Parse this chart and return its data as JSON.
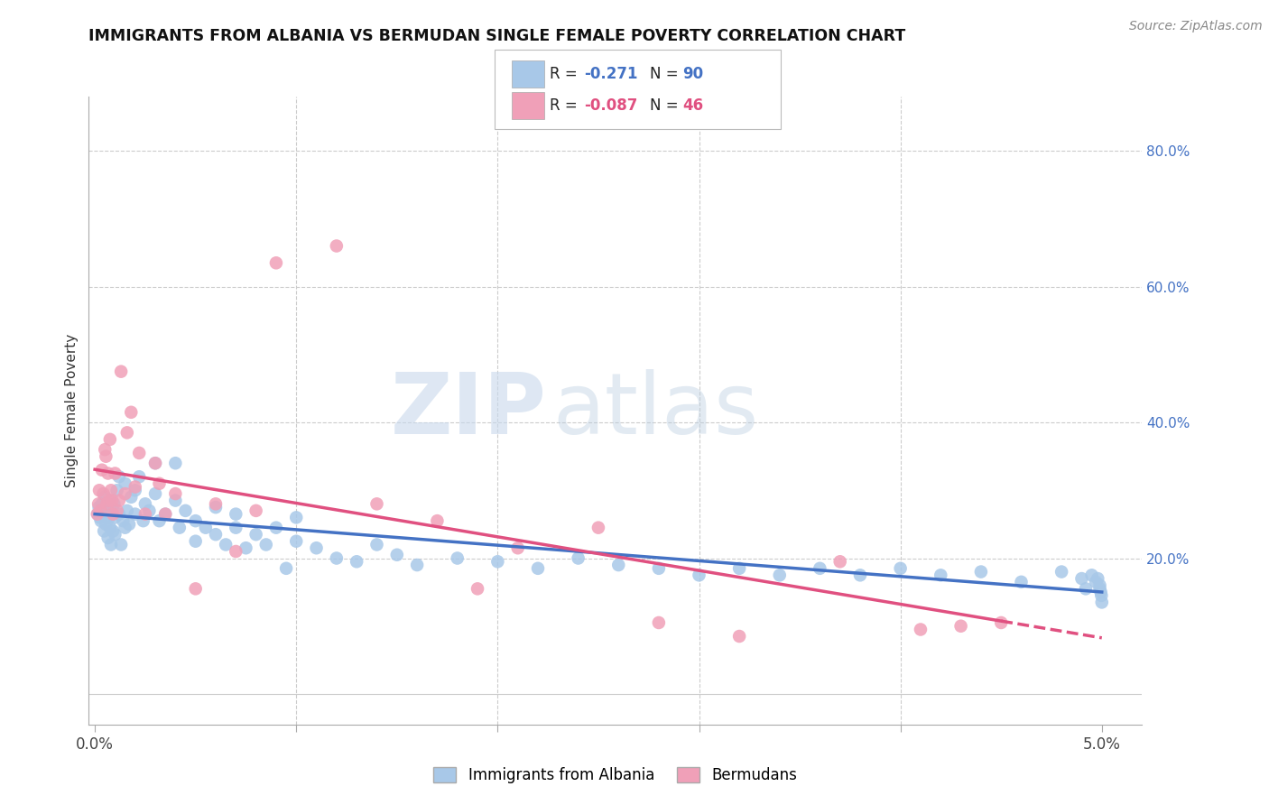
{
  "title": "IMMIGRANTS FROM ALBANIA VS BERMUDAN SINGLE FEMALE POVERTY CORRELATION CHART",
  "source": "Source: ZipAtlas.com",
  "ylabel": "Single Female Poverty",
  "albania_color": "#a8c8e8",
  "bermuda_color": "#f0a0b8",
  "albania_line_color": "#4472c4",
  "bermuda_line_color": "#e05080",
  "R_albania": -0.271,
  "N_albania": 90,
  "R_bermuda": -0.087,
  "N_bermuda": 46,
  "legend_albania": "Immigrants from Albania",
  "legend_bermuda": "Bermudans",
  "watermark_zip": "ZIP",
  "watermark_atlas": "atlas",
  "background_color": "#ffffff",
  "albania_scatter_x": [
    0.00015,
    0.0002,
    0.00025,
    0.0003,
    0.00035,
    0.0004,
    0.00045,
    0.0005,
    0.00055,
    0.0006,
    0.00065,
    0.0007,
    0.00075,
    0.0008,
    0.00085,
    0.0009,
    0.00095,
    0.001,
    0.001,
    0.0011,
    0.0012,
    0.0012,
    0.0013,
    0.0014,
    0.0015,
    0.0015,
    0.0016,
    0.0017,
    0.0018,
    0.002,
    0.002,
    0.0022,
    0.0024,
    0.0025,
    0.0027,
    0.003,
    0.003,
    0.0032,
    0.0035,
    0.004,
    0.004,
    0.0042,
    0.0045,
    0.005,
    0.005,
    0.0055,
    0.006,
    0.006,
    0.0065,
    0.007,
    0.007,
    0.0075,
    0.008,
    0.0085,
    0.009,
    0.0095,
    0.01,
    0.01,
    0.011,
    0.012,
    0.013,
    0.014,
    0.015,
    0.016,
    0.018,
    0.02,
    0.022,
    0.024,
    0.026,
    0.028,
    0.03,
    0.032,
    0.034,
    0.036,
    0.038,
    0.04,
    0.042,
    0.044,
    0.046,
    0.048,
    0.049,
    0.0492,
    0.0495,
    0.0497,
    0.0498,
    0.0499,
    0.0499,
    0.04995,
    0.04998,
    0.05
  ],
  "albania_scatter_y": [
    0.265,
    0.275,
    0.26,
    0.255,
    0.28,
    0.27,
    0.24,
    0.29,
    0.25,
    0.27,
    0.23,
    0.26,
    0.245,
    0.22,
    0.275,
    0.24,
    0.28,
    0.26,
    0.235,
    0.3,
    0.265,
    0.32,
    0.22,
    0.255,
    0.31,
    0.245,
    0.27,
    0.25,
    0.29,
    0.3,
    0.265,
    0.32,
    0.255,
    0.28,
    0.27,
    0.34,
    0.295,
    0.255,
    0.265,
    0.34,
    0.285,
    0.245,
    0.27,
    0.255,
    0.225,
    0.245,
    0.275,
    0.235,
    0.22,
    0.265,
    0.245,
    0.215,
    0.235,
    0.22,
    0.245,
    0.185,
    0.26,
    0.225,
    0.215,
    0.2,
    0.195,
    0.22,
    0.205,
    0.19,
    0.2,
    0.195,
    0.185,
    0.2,
    0.19,
    0.185,
    0.175,
    0.185,
    0.175,
    0.185,
    0.175,
    0.185,
    0.175,
    0.18,
    0.165,
    0.18,
    0.17,
    0.155,
    0.175,
    0.165,
    0.17,
    0.155,
    0.16,
    0.15,
    0.145,
    0.135
  ],
  "bermuda_scatter_x": [
    0.00012,
    0.00018,
    0.00022,
    0.00028,
    0.00035,
    0.00042,
    0.0005,
    0.00055,
    0.0006,
    0.00065,
    0.0007,
    0.00075,
    0.0008,
    0.00085,
    0.0009,
    0.001,
    0.0011,
    0.0012,
    0.0013,
    0.0015,
    0.0016,
    0.0018,
    0.002,
    0.0022,
    0.0025,
    0.003,
    0.0032,
    0.0035,
    0.004,
    0.005,
    0.006,
    0.007,
    0.008,
    0.009,
    0.012,
    0.014,
    0.017,
    0.019,
    0.021,
    0.025,
    0.028,
    0.032,
    0.037,
    0.041,
    0.043,
    0.045
  ],
  "bermuda_scatter_y": [
    0.265,
    0.28,
    0.3,
    0.27,
    0.33,
    0.295,
    0.36,
    0.35,
    0.28,
    0.325,
    0.285,
    0.375,
    0.3,
    0.285,
    0.265,
    0.325,
    0.27,
    0.285,
    0.475,
    0.295,
    0.385,
    0.415,
    0.305,
    0.355,
    0.265,
    0.34,
    0.31,
    0.265,
    0.295,
    0.155,
    0.28,
    0.21,
    0.27,
    0.635,
    0.66,
    0.28,
    0.255,
    0.155,
    0.215,
    0.245,
    0.105,
    0.085,
    0.195,
    0.095,
    0.1,
    0.105
  ],
  "xlim": [
    -0.0003,
    0.052
  ],
  "ylim": [
    -0.045,
    0.88
  ],
  "yticks": [
    0.0,
    0.2,
    0.4,
    0.6,
    0.8
  ],
  "ytick_labels_right": [
    "",
    "20.0%",
    "40.0%",
    "60.0%",
    "80.0%"
  ],
  "xticks": [
    0.0,
    0.01,
    0.02,
    0.03,
    0.04,
    0.05
  ],
  "xtick_labels": [
    "0.0%",
    "",
    "",
    "",
    "",
    "5.0%"
  ]
}
